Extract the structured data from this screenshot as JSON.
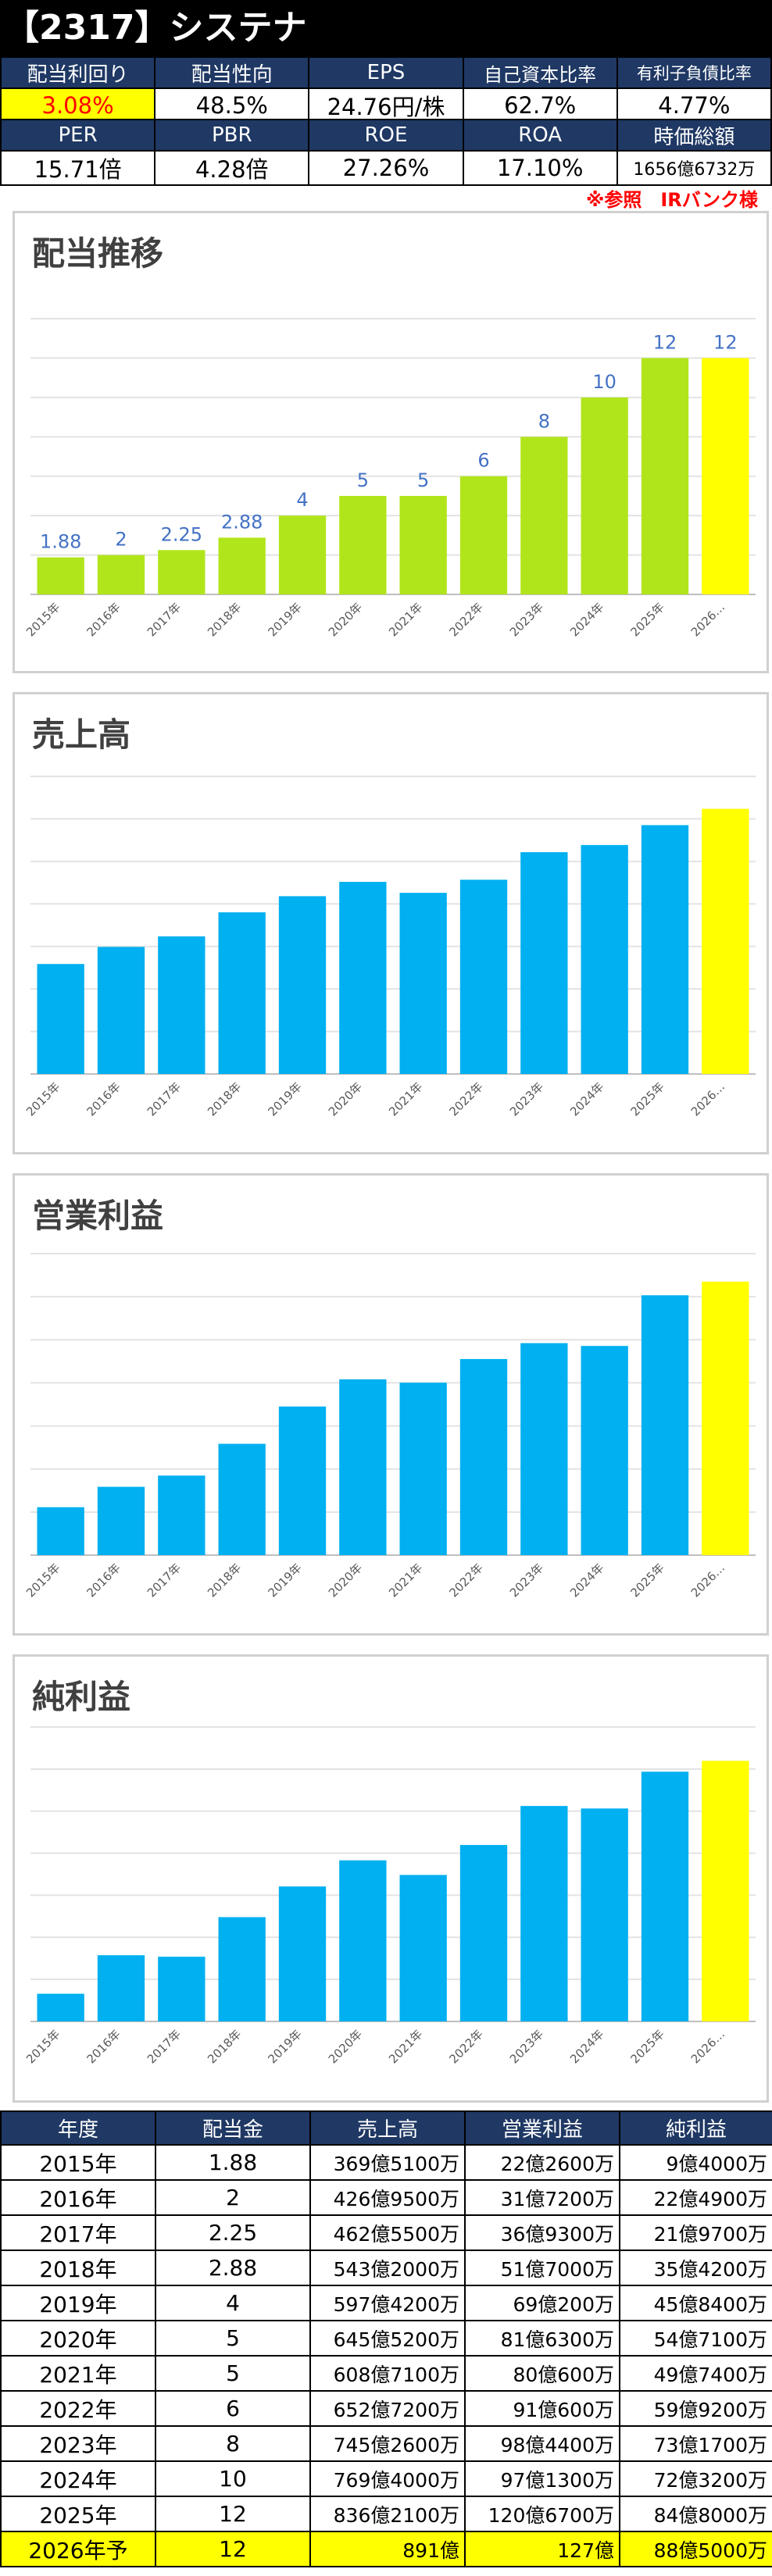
{
  "header": {
    "title": "【2317】システナ",
    "row1_labels": [
      "配当利回り",
      "配当性向",
      "EPS",
      "自己資本比率",
      "有利子負債比率"
    ],
    "row1_values": [
      "3.08%",
      "48.5%",
      "24.76円/株",
      "62.7%",
      "4.77%"
    ],
    "row2_labels": [
      "PER",
      "PBR",
      "ROE",
      "ROA",
      "時価総額"
    ],
    "row2_values": [
      "15.71倍",
      "4.28倍",
      "27.26%",
      "17.10%",
      "1656億6732万"
    ],
    "note": "※参照　IRバンク様"
  },
  "colors": {
    "navy": "#1f3864",
    "dividend_bar": "#b1e51b",
    "revenue_bar": "#00b0f0",
    "forecast_bar": "#ffff00",
    "highlight_text": "#ff0000",
    "label_blue": "#4472c4"
  },
  "chart_data": [
    {
      "type": "bar",
      "title": "配当推移",
      "categories": [
        "2015年",
        "2016年",
        "2017年",
        "2018年",
        "2019年",
        "2020年",
        "2021年",
        "2022年",
        "2023年",
        "2024年",
        "2025年",
        "2026…"
      ],
      "values": [
        1.88,
        2,
        2.25,
        2.88,
        4,
        5,
        5,
        6,
        8,
        10,
        12,
        12
      ],
      "data_labels": [
        "1.88",
        "2",
        "2.25",
        "2.88",
        "4",
        "5",
        "5",
        "6",
        "8",
        "10",
        "12",
        "12"
      ],
      "ylim": [
        0,
        14
      ],
      "grid": true,
      "bar_color": "#b1e51b",
      "highlight_last": "#ffff00"
    },
    {
      "type": "bar",
      "title": "売上高",
      "categories": [
        "2015年",
        "2016年",
        "2017年",
        "2018年",
        "2019年",
        "2020年",
        "2021年",
        "2022年",
        "2023年",
        "2024年",
        "2025年",
        "2026…"
      ],
      "values": [
        369.51,
        426.95,
        462.55,
        543.2,
        597.42,
        645.52,
        608.71,
        652.72,
        745.26,
        769.4,
        836.21,
        891
      ],
      "ylim": [
        0,
        1000
      ],
      "grid": true,
      "bar_color": "#00b0f0",
      "highlight_last": "#ffff00"
    },
    {
      "type": "bar",
      "title": "営業利益",
      "categories": [
        "2015年",
        "2016年",
        "2017年",
        "2018年",
        "2019年",
        "2020年",
        "2021年",
        "2022年",
        "2023年",
        "2024年",
        "2025年",
        "2026…"
      ],
      "values": [
        22.26,
        31.72,
        36.93,
        51.7,
        69.02,
        81.63,
        80.06,
        91.06,
        98.44,
        97.13,
        120.67,
        127
      ],
      "ylim": [
        0,
        140
      ],
      "grid": true,
      "bar_color": "#00b0f0",
      "highlight_last": "#ffff00"
    },
    {
      "type": "bar",
      "title": "純利益",
      "categories": [
        "2015年",
        "2016年",
        "2017年",
        "2018年",
        "2019年",
        "2020年",
        "2021年",
        "2022年",
        "2023年",
        "2024年",
        "2025年",
        "2026…"
      ],
      "values": [
        9.4,
        22.49,
        21.97,
        35.42,
        45.84,
        54.71,
        49.74,
        59.92,
        73.17,
        72.32,
        84.8,
        88.5
      ],
      "ylim": [
        0,
        100
      ],
      "grid": true,
      "bar_color": "#00b0f0",
      "highlight_last": "#ffff00"
    }
  ],
  "table": {
    "headers": [
      "年度",
      "配当金",
      "売上高",
      "営業利益",
      "純利益"
    ],
    "rows": [
      [
        "2015年",
        "1.88",
        "369億5100万",
        "22億2600万",
        "9億4000万"
      ],
      [
        "2016年",
        "2",
        "426億9500万",
        "31億7200万",
        "22億4900万"
      ],
      [
        "2017年",
        "2.25",
        "462億5500万",
        "36億9300万",
        "21億9700万"
      ],
      [
        "2018年",
        "2.88",
        "543億2000万",
        "51億7000万",
        "35億4200万"
      ],
      [
        "2019年",
        "4",
        "597億4200万",
        "69億200万",
        "45億8400万"
      ],
      [
        "2020年",
        "5",
        "645億5200万",
        "81億6300万",
        "54億7100万"
      ],
      [
        "2021年",
        "5",
        "608億7100万",
        "80億600万",
        "49億7400万"
      ],
      [
        "2022年",
        "6",
        "652億7200万",
        "91億600万",
        "59億9200万"
      ],
      [
        "2023年",
        "8",
        "745億2600万",
        "98億4400万",
        "73億1700万"
      ],
      [
        "2024年",
        "10",
        "769億4000万",
        "97億1300万",
        "72億3200万"
      ],
      [
        "2025年",
        "12",
        "836億2100万",
        "120億6700万",
        "84億8000万"
      ],
      [
        "2026年予",
        "12",
        "891億",
        "127億",
        "88億5000万"
      ]
    ]
  }
}
